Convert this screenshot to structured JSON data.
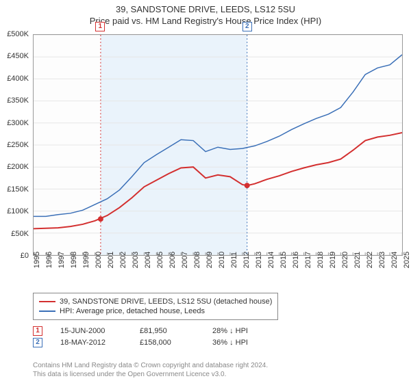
{
  "title": {
    "line1": "39, SANDSTONE DRIVE, LEEDS, LS12 5SU",
    "line2": "Price paid vs. HM Land Registry's House Price Index (HPI)"
  },
  "chart": {
    "type": "line",
    "background_color": "#fdfdfd",
    "grid_color": "#e6e6e6",
    "border_color": "#999999",
    "y": {
      "min": 0,
      "max": 500000,
      "step": 50000,
      "prefix": "£",
      "suffix": "K",
      "divide": 1000
    },
    "x": {
      "min": 1995,
      "max": 2025,
      "step": 1
    },
    "band": {
      "from": 2000.46,
      "to": 2012.38,
      "fill": "#eaf3fb"
    },
    "vlines": [
      {
        "x": 2000.46,
        "color": "#d32f2f",
        "dash": "2,3"
      },
      {
        "x": 2012.38,
        "color": "#3a6fb7",
        "dash": "2,3"
      }
    ],
    "markers": [
      {
        "id": "1",
        "x_top": 2000.46,
        "color": "#d32f2f",
        "sale_x": 2000.46,
        "sale_y": 81950
      },
      {
        "id": "2",
        "x_top": 2012.38,
        "color": "#3a6fb7",
        "sale_x": 2012.38,
        "sale_y": 158000
      }
    ],
    "series": [
      {
        "name": "price_paid",
        "label": "39, SANDSTONE DRIVE, LEEDS, LS12 5SU (detached house)",
        "color": "#d32f2f",
        "width": 2,
        "points": [
          [
            1995,
            60000
          ],
          [
            1996,
            61000
          ],
          [
            1997,
            62000
          ],
          [
            1998,
            65000
          ],
          [
            1999,
            70000
          ],
          [
            2000,
            78000
          ],
          [
            2001,
            90000
          ],
          [
            2002,
            108000
          ],
          [
            2003,
            130000
          ],
          [
            2004,
            155000
          ],
          [
            2005,
            170000
          ],
          [
            2006,
            185000
          ],
          [
            2007,
            198000
          ],
          [
            2008,
            200000
          ],
          [
            2009,
            175000
          ],
          [
            2010,
            182000
          ],
          [
            2011,
            178000
          ],
          [
            2012,
            160000
          ],
          [
            2012.4,
            158000
          ],
          [
            2013,
            162000
          ],
          [
            2014,
            172000
          ],
          [
            2015,
            180000
          ],
          [
            2016,
            190000
          ],
          [
            2017,
            198000
          ],
          [
            2018,
            205000
          ],
          [
            2019,
            210000
          ],
          [
            2020,
            218000
          ],
          [
            2021,
            238000
          ],
          [
            2022,
            260000
          ],
          [
            2023,
            268000
          ],
          [
            2024,
            272000
          ],
          [
            2025,
            278000
          ]
        ]
      },
      {
        "name": "hpi",
        "label": "HPI: Average price, detached house, Leeds",
        "color": "#3a6fb7",
        "width": 1.5,
        "points": [
          [
            1995,
            88000
          ],
          [
            1996,
            88000
          ],
          [
            1997,
            92000
          ],
          [
            1998,
            95000
          ],
          [
            1999,
            102000
          ],
          [
            2000,
            115000
          ],
          [
            2001,
            128000
          ],
          [
            2002,
            148000
          ],
          [
            2003,
            178000
          ],
          [
            2004,
            210000
          ],
          [
            2005,
            228000
          ],
          [
            2006,
            245000
          ],
          [
            2007,
            262000
          ],
          [
            2008,
            260000
          ],
          [
            2009,
            235000
          ],
          [
            2010,
            245000
          ],
          [
            2011,
            240000
          ],
          [
            2012,
            242000
          ],
          [
            2013,
            248000
          ],
          [
            2014,
            258000
          ],
          [
            2015,
            270000
          ],
          [
            2016,
            285000
          ],
          [
            2017,
            298000
          ],
          [
            2018,
            310000
          ],
          [
            2019,
            320000
          ],
          [
            2020,
            335000
          ],
          [
            2021,
            370000
          ],
          [
            2022,
            410000
          ],
          [
            2023,
            425000
          ],
          [
            2024,
            432000
          ],
          [
            2025,
            455000
          ]
        ]
      }
    ],
    "sale_dot": {
      "color": "#d32f2f",
      "radius": 4
    }
  },
  "legend": {
    "border_color": "#888888",
    "items": [
      {
        "color": "#d32f2f",
        "label": "39, SANDSTONE DRIVE, LEEDS, LS12 5SU (detached house)"
      },
      {
        "color": "#3a6fb7",
        "label": "HPI: Average price, detached house, Leeds"
      }
    ]
  },
  "sales": [
    {
      "id": "1",
      "color": "#d32f2f",
      "date": "15-JUN-2000",
      "price": "£81,950",
      "delta": "28% ↓ HPI"
    },
    {
      "id": "2",
      "color": "#3a6fb7",
      "date": "18-MAY-2012",
      "price": "£158,000",
      "delta": "36% ↓ HPI"
    }
  ],
  "footer": {
    "line1": "Contains HM Land Registry data © Crown copyright and database right 2024.",
    "line2": "This data is licensed under the Open Government Licence v3.0."
  }
}
